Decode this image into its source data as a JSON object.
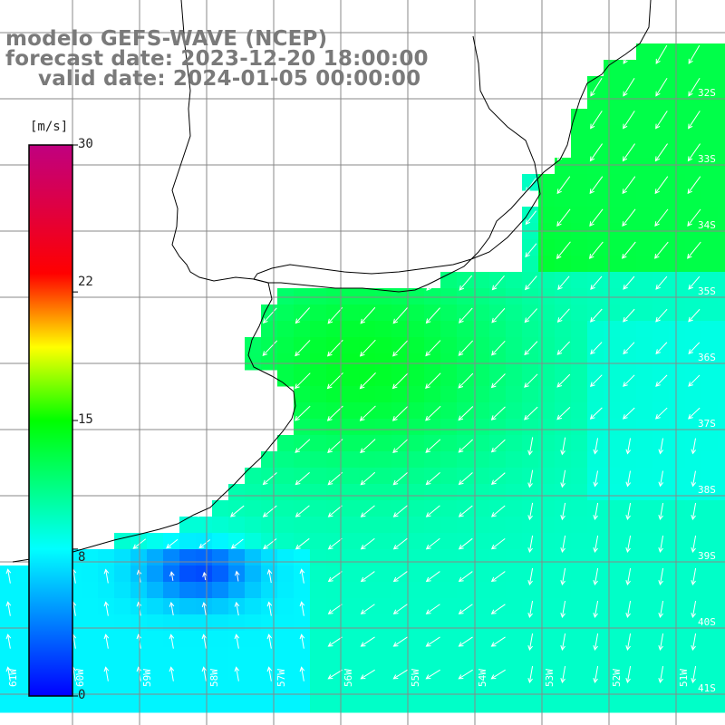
{
  "title": {
    "line1": "modelo GEFS-WAVE (NCEP)",
    "line2": "forecast date: 2023-12-20 18:00:00",
    "line3": "valid date: 2024-01-05 00:00:00"
  },
  "colorbar": {
    "unit": "[m/s]",
    "ticks": [
      "30",
      "22",
      "15",
      "8",
      "0"
    ],
    "tick_values": [
      30,
      22,
      15,
      8,
      0
    ],
    "colors": [
      "#0000ff",
      "#00ffff",
      "#00ff00",
      "#ffff00",
      "#ff0000",
      "#c00080"
    ]
  },
  "map": {
    "lat_labels": [
      "32S",
      "33S",
      "34S",
      "35S",
      "36S",
      "37S",
      "38S",
      "39S",
      "40S",
      "41S"
    ],
    "lon_labels": [
      "61W",
      "60W",
      "59W",
      "58W",
      "57W",
      "56W",
      "55W",
      "54W",
      "53W",
      "52W",
      "51W"
    ],
    "lat_range": [
      -41.5,
      -29.8
    ],
    "lon_range": [
      -61.2,
      -50.2
    ],
    "land_color": "#ffffff",
    "grid_color": "#888888",
    "coast_color": "#000000",
    "arrow_color": "#ffffff",
    "wind_direction": "from northeast, south-west flow; southerly flow in the south"
  }
}
